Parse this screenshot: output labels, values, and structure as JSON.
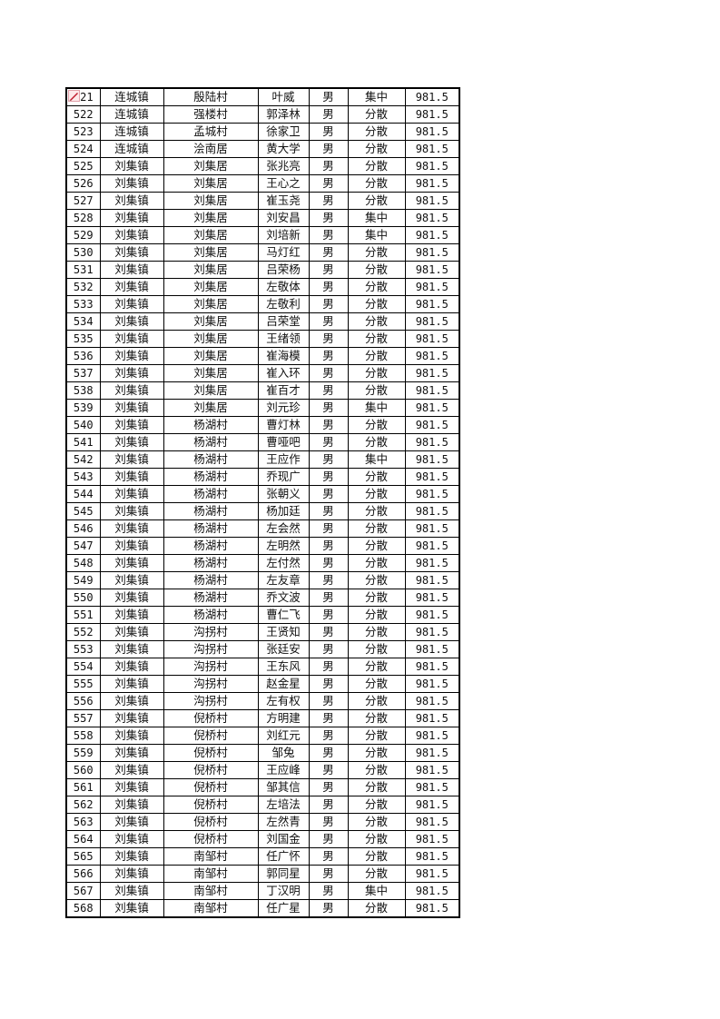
{
  "table": {
    "rows": [
      [
        "521",
        "连城镇",
        "殷陆村",
        "叶威",
        "男",
        "集中",
        "981.5"
      ],
      [
        "522",
        "连城镇",
        "强楼村",
        "郭泽林",
        "男",
        "分散",
        "981.5"
      ],
      [
        "523",
        "连城镇",
        "孟城村",
        "徐家卫",
        "男",
        "分散",
        "981.5"
      ],
      [
        "524",
        "连城镇",
        "浍南居",
        "黄大学",
        "男",
        "分散",
        "981.5"
      ],
      [
        "525",
        "刘集镇",
        "刘集居",
        "张兆亮",
        "男",
        "分散",
        "981.5"
      ],
      [
        "526",
        "刘集镇",
        "刘集居",
        "王心之",
        "男",
        "分散",
        "981.5"
      ],
      [
        "527",
        "刘集镇",
        "刘集居",
        "崔玉尧",
        "男",
        "分散",
        "981.5"
      ],
      [
        "528",
        "刘集镇",
        "刘集居",
        "刘安昌",
        "男",
        "集中",
        "981.5"
      ],
      [
        "529",
        "刘集镇",
        "刘集居",
        "刘培新",
        "男",
        "集中",
        "981.5"
      ],
      [
        "530",
        "刘集镇",
        "刘集居",
        "马灯红",
        "男",
        "分散",
        "981.5"
      ],
      [
        "531",
        "刘集镇",
        "刘集居",
        "吕荣杨",
        "男",
        "分散",
        "981.5"
      ],
      [
        "532",
        "刘集镇",
        "刘集居",
        "左敬体",
        "男",
        "分散",
        "981.5"
      ],
      [
        "533",
        "刘集镇",
        "刘集居",
        "左敬利",
        "男",
        "分散",
        "981.5"
      ],
      [
        "534",
        "刘集镇",
        "刘集居",
        "吕荣堂",
        "男",
        "分散",
        "981.5"
      ],
      [
        "535",
        "刘集镇",
        "刘集居",
        "王绪领",
        "男",
        "分散",
        "981.5"
      ],
      [
        "536",
        "刘集镇",
        "刘集居",
        "崔海模",
        "男",
        "分散",
        "981.5"
      ],
      [
        "537",
        "刘集镇",
        "刘集居",
        "崔入环",
        "男",
        "分散",
        "981.5"
      ],
      [
        "538",
        "刘集镇",
        "刘集居",
        "崔百才",
        "男",
        "分散",
        "981.5"
      ],
      [
        "539",
        "刘集镇",
        "刘集居",
        "刘元珍",
        "男",
        "集中",
        "981.5"
      ],
      [
        "540",
        "刘集镇",
        "杨湖村",
        "曹灯林",
        "男",
        "分散",
        "981.5"
      ],
      [
        "541",
        "刘集镇",
        "杨湖村",
        "曹哑吧",
        "男",
        "分散",
        "981.5"
      ],
      [
        "542",
        "刘集镇",
        "杨湖村",
        "王应作",
        "男",
        "集中",
        "981.5"
      ],
      [
        "543",
        "刘集镇",
        "杨湖村",
        "乔现广",
        "男",
        "分散",
        "981.5"
      ],
      [
        "544",
        "刘集镇",
        "杨湖村",
        "张朝义",
        "男",
        "分散",
        "981.5"
      ],
      [
        "545",
        "刘集镇",
        "杨湖村",
        "杨加廷",
        "男",
        "分散",
        "981.5"
      ],
      [
        "546",
        "刘集镇",
        "杨湖村",
        "左会然",
        "男",
        "分散",
        "981.5"
      ],
      [
        "547",
        "刘集镇",
        "杨湖村",
        "左明然",
        "男",
        "分散",
        "981.5"
      ],
      [
        "548",
        "刘集镇",
        "杨湖村",
        "左付然",
        "男",
        "分散",
        "981.5"
      ],
      [
        "549",
        "刘集镇",
        "杨湖村",
        "左友章",
        "男",
        "分散",
        "981.5"
      ],
      [
        "550",
        "刘集镇",
        "杨湖村",
        "乔文波",
        "男",
        "分散",
        "981.5"
      ],
      [
        "551",
        "刘集镇",
        "杨湖村",
        "曹仁飞",
        "男",
        "分散",
        "981.5"
      ],
      [
        "552",
        "刘集镇",
        "沟拐村",
        "王贤知",
        "男",
        "分散",
        "981.5"
      ],
      [
        "553",
        "刘集镇",
        "沟拐村",
        "张廷安",
        "男",
        "分散",
        "981.5"
      ],
      [
        "554",
        "刘集镇",
        "沟拐村",
        "王东风",
        "男",
        "分散",
        "981.5"
      ],
      [
        "555",
        "刘集镇",
        "沟拐村",
        "赵金星",
        "男",
        "分散",
        "981.5"
      ],
      [
        "556",
        "刘集镇",
        "沟拐村",
        "左有权",
        "男",
        "分散",
        "981.5"
      ],
      [
        "557",
        "刘集镇",
        "倪桥村",
        "方明建",
        "男",
        "分散",
        "981.5"
      ],
      [
        "558",
        "刘集镇",
        "倪桥村",
        "刘红元",
        "男",
        "分散",
        "981.5"
      ],
      [
        "559",
        "刘集镇",
        "倪桥村",
        "邹兔",
        "男",
        "分散",
        "981.5"
      ],
      [
        "560",
        "刘集镇",
        "倪桥村",
        "王应峰",
        "男",
        "分散",
        "981.5"
      ],
      [
        "561",
        "刘集镇",
        "倪桥村",
        "邹其信",
        "男",
        "分散",
        "981.5"
      ],
      [
        "562",
        "刘集镇",
        "倪桥村",
        "左培法",
        "男",
        "分散",
        "981.5"
      ],
      [
        "563",
        "刘集镇",
        "倪桥村",
        "左然青",
        "男",
        "分散",
        "981.5"
      ],
      [
        "564",
        "刘集镇",
        "倪桥村",
        "刘国金",
        "男",
        "分散",
        "981.5"
      ],
      [
        "565",
        "刘集镇",
        "南邹村",
        "任广怀",
        "男",
        "分散",
        "981.5"
      ],
      [
        "566",
        "刘集镇",
        "南邹村",
        "郭同星",
        "男",
        "分散",
        "981.5"
      ],
      [
        "567",
        "刘集镇",
        "南邹村",
        "丁汉明",
        "男",
        "集中",
        "981.5"
      ],
      [
        "568",
        "刘集镇",
        "南邹村",
        "任广星",
        "男",
        "分散",
        "981.5"
      ]
    ]
  },
  "icons": {
    "first_cell": "comment-pencil-icon",
    "accent": "#c0182a"
  }
}
